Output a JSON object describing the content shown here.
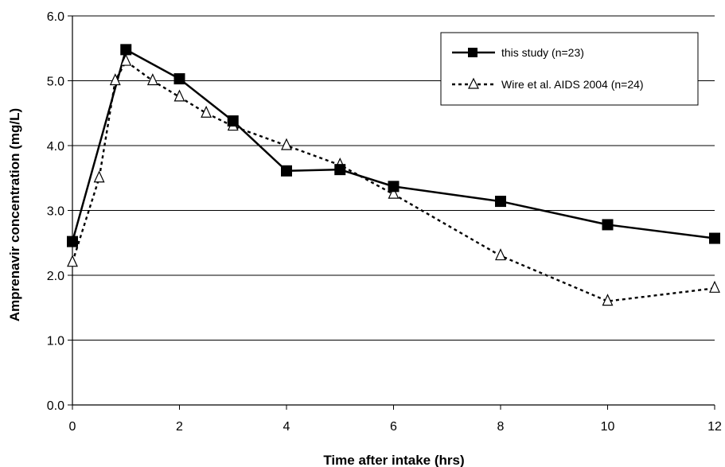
{
  "chart_data": {
    "type": "line",
    "title": "",
    "xlabel": "Time after intake (hrs)",
    "ylabel": "Amprenavir concentration (mg/L)",
    "xlim": [
      0,
      12
    ],
    "ylim": [
      0,
      6
    ],
    "x_ticks": [
      "0",
      "2",
      "4",
      "6",
      "8",
      "10",
      "12"
    ],
    "y_ticks": [
      "0.0",
      "1.0",
      "2.0",
      "3.0",
      "4.0",
      "5.0",
      "6.0"
    ],
    "grid": "horizontal",
    "legend_position": "top-right",
    "series": [
      {
        "name": "this study (n=23)",
        "marker": "filled-square",
        "line_style": "solid",
        "color": "#000000",
        "x": [
          0,
          1,
          2,
          3,
          4,
          5,
          6,
          8,
          10,
          12
        ],
        "y": [
          2.52,
          5.48,
          5.03,
          4.38,
          3.61,
          3.63,
          3.37,
          3.14,
          2.78,
          2.57
        ]
      },
      {
        "name": "Wire et al. AIDS 2004 (n=24)",
        "marker": "open-triangle",
        "line_style": "dotted",
        "color": "#000000",
        "x": [
          0,
          0.5,
          0.8,
          1,
          1.5,
          2,
          2.5,
          3,
          4,
          5,
          6,
          8,
          10,
          12
        ],
        "y": [
          2.2,
          3.5,
          5.0,
          5.3,
          5.0,
          4.75,
          4.5,
          4.3,
          4.0,
          3.7,
          3.25,
          2.3,
          1.6,
          1.8
        ]
      }
    ]
  }
}
